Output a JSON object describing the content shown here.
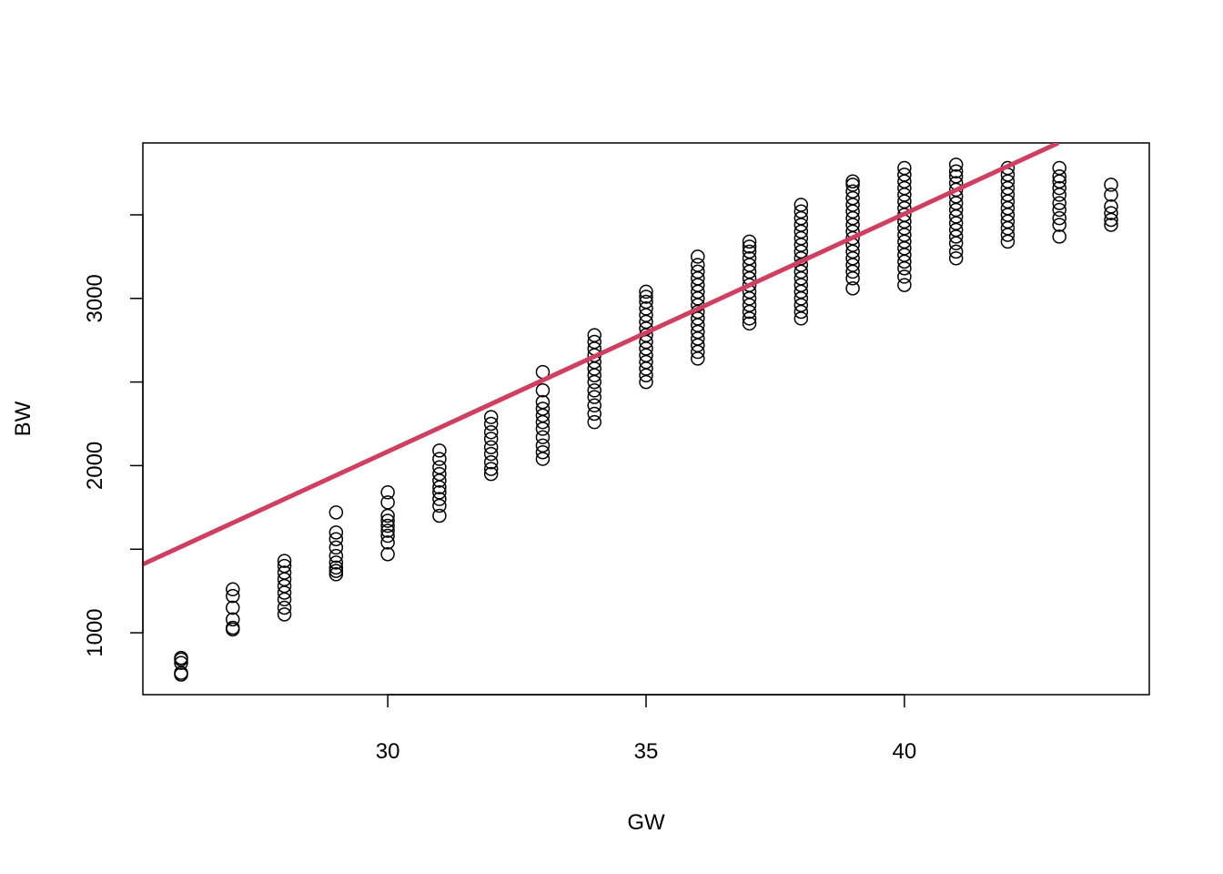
{
  "chart_data": {
    "type": "scatter",
    "title": "",
    "xlabel": "GW",
    "ylabel": "BW",
    "xlim": [
      25.26,
      44.74
    ],
    "ylim": [
      630,
      3930
    ],
    "x_ticks": [
      30,
      35,
      40
    ],
    "y_ticks": [
      1000,
      1500,
      2000,
      2500,
      3000,
      3500
    ],
    "y_tick_labels": [
      "1000",
      "",
      "2000",
      "",
      "3000",
      ""
    ],
    "grid": false,
    "legend": "none",
    "point_color": "#000000",
    "series": [
      {
        "type": "scatter",
        "points": [
          [
            26,
            750
          ],
          [
            26,
            760
          ],
          [
            26,
            820
          ],
          [
            26,
            840
          ],
          [
            26,
            850
          ],
          [
            27,
            1020
          ],
          [
            27,
            1030
          ],
          [
            27,
            1080
          ],
          [
            27,
            1150
          ],
          [
            27,
            1220
          ],
          [
            27,
            1260
          ],
          [
            28,
            1110
          ],
          [
            28,
            1150
          ],
          [
            28,
            1200
          ],
          [
            28,
            1240
          ],
          [
            28,
            1280
          ],
          [
            28,
            1320
          ],
          [
            28,
            1360
          ],
          [
            28,
            1400
          ],
          [
            28,
            1430
          ],
          [
            29,
            1350
          ],
          [
            29,
            1370
          ],
          [
            29,
            1390
          ],
          [
            29,
            1420
          ],
          [
            29,
            1460
          ],
          [
            29,
            1510
          ],
          [
            29,
            1560
          ],
          [
            29,
            1600
          ],
          [
            29,
            1720
          ],
          [
            30,
            1470
          ],
          [
            30,
            1540
          ],
          [
            30,
            1580
          ],
          [
            30,
            1610
          ],
          [
            30,
            1640
          ],
          [
            30,
            1670
          ],
          [
            30,
            1700
          ],
          [
            30,
            1780
          ],
          [
            30,
            1840
          ],
          [
            31,
            1700
          ],
          [
            31,
            1760
          ],
          [
            31,
            1800
          ],
          [
            31,
            1840
          ],
          [
            31,
            1870
          ],
          [
            31,
            1910
          ],
          [
            31,
            1950
          ],
          [
            31,
            1990
          ],
          [
            31,
            2040
          ],
          [
            31,
            2090
          ],
          [
            32,
            1950
          ],
          [
            32,
            1980
          ],
          [
            32,
            2020
          ],
          [
            32,
            2070
          ],
          [
            32,
            2110
          ],
          [
            32,
            2160
          ],
          [
            32,
            2200
          ],
          [
            32,
            2250
          ],
          [
            32,
            2290
          ],
          [
            33,
            2040
          ],
          [
            33,
            2080
          ],
          [
            33,
            2120
          ],
          [
            33,
            2170
          ],
          [
            33,
            2220
          ],
          [
            33,
            2260
          ],
          [
            33,
            2300
          ],
          [
            33,
            2340
          ],
          [
            33,
            2380
          ],
          [
            33,
            2450
          ],
          [
            33,
            2560
          ],
          [
            34,
            2260
          ],
          [
            34,
            2310
          ],
          [
            34,
            2360
          ],
          [
            34,
            2410
          ],
          [
            34,
            2450
          ],
          [
            34,
            2500
          ],
          [
            34,
            2540
          ],
          [
            34,
            2580
          ],
          [
            34,
            2620
          ],
          [
            34,
            2660
          ],
          [
            34,
            2700
          ],
          [
            34,
            2740
          ],
          [
            34,
            2780
          ],
          [
            35,
            2500
          ],
          [
            35,
            2540
          ],
          [
            35,
            2580
          ],
          [
            35,
            2620
          ],
          [
            35,
            2660
          ],
          [
            35,
            2700
          ],
          [
            35,
            2740
          ],
          [
            35,
            2780
          ],
          [
            35,
            2820
          ],
          [
            35,
            2860
          ],
          [
            35,
            2900
          ],
          [
            35,
            2940
          ],
          [
            35,
            2980
          ],
          [
            35,
            3010
          ],
          [
            35,
            3040
          ],
          [
            36,
            2640
          ],
          [
            36,
            2680
          ],
          [
            36,
            2720
          ],
          [
            36,
            2760
          ],
          [
            36,
            2800
          ],
          [
            36,
            2840
          ],
          [
            36,
            2880
          ],
          [
            36,
            2920
          ],
          [
            36,
            2960
          ],
          [
            36,
            3000
          ],
          [
            36,
            3040
          ],
          [
            36,
            3080
          ],
          [
            36,
            3120
          ],
          [
            36,
            3160
          ],
          [
            36,
            3200
          ],
          [
            36,
            3250
          ],
          [
            37,
            2850
          ],
          [
            37,
            2880
          ],
          [
            37,
            2920
          ],
          [
            37,
            2960
          ],
          [
            37,
            3000
          ],
          [
            37,
            3040
          ],
          [
            37,
            3080
          ],
          [
            37,
            3120
          ],
          [
            37,
            3160
          ],
          [
            37,
            3200
          ],
          [
            37,
            3240
          ],
          [
            37,
            3280
          ],
          [
            37,
            3310
          ],
          [
            37,
            3340
          ],
          [
            38,
            2880
          ],
          [
            38,
            2920
          ],
          [
            38,
            2960
          ],
          [
            38,
            3000
          ],
          [
            38,
            3040
          ],
          [
            38,
            3080
          ],
          [
            38,
            3120
          ],
          [
            38,
            3160
          ],
          [
            38,
            3200
          ],
          [
            38,
            3240
          ],
          [
            38,
            3280
          ],
          [
            38,
            3320
          ],
          [
            38,
            3360
          ],
          [
            38,
            3400
          ],
          [
            38,
            3440
          ],
          [
            38,
            3480
          ],
          [
            38,
            3520
          ],
          [
            38,
            3560
          ],
          [
            39,
            3060
          ],
          [
            39,
            3120
          ],
          [
            39,
            3160
          ],
          [
            39,
            3200
          ],
          [
            39,
            3240
          ],
          [
            39,
            3280
          ],
          [
            39,
            3320
          ],
          [
            39,
            3360
          ],
          [
            39,
            3400
          ],
          [
            39,
            3440
          ],
          [
            39,
            3480
          ],
          [
            39,
            3520
          ],
          [
            39,
            3560
          ],
          [
            39,
            3600
          ],
          [
            39,
            3640
          ],
          [
            39,
            3680
          ],
          [
            39,
            3700
          ],
          [
            40,
            3080
          ],
          [
            40,
            3130
          ],
          [
            40,
            3180
          ],
          [
            40,
            3220
          ],
          [
            40,
            3260
          ],
          [
            40,
            3300
          ],
          [
            40,
            3340
          ],
          [
            40,
            3380
          ],
          [
            40,
            3420
          ],
          [
            40,
            3460
          ],
          [
            40,
            3500
          ],
          [
            40,
            3540
          ],
          [
            40,
            3580
          ],
          [
            40,
            3620
          ],
          [
            40,
            3660
          ],
          [
            40,
            3700
          ],
          [
            40,
            3740
          ],
          [
            40,
            3780
          ],
          [
            41,
            3240
          ],
          [
            41,
            3280
          ],
          [
            41,
            3330
          ],
          [
            41,
            3370
          ],
          [
            41,
            3410
          ],
          [
            41,
            3450
          ],
          [
            41,
            3490
          ],
          [
            41,
            3530
          ],
          [
            41,
            3570
          ],
          [
            41,
            3610
          ],
          [
            41,
            3650
          ],
          [
            41,
            3690
          ],
          [
            41,
            3730
          ],
          [
            41,
            3760
          ],
          [
            41,
            3800
          ],
          [
            42,
            3340
          ],
          [
            42,
            3380
          ],
          [
            42,
            3420
          ],
          [
            42,
            3460
          ],
          [
            42,
            3500
          ],
          [
            42,
            3540
          ],
          [
            42,
            3580
          ],
          [
            42,
            3620
          ],
          [
            42,
            3660
          ],
          [
            42,
            3700
          ],
          [
            42,
            3740
          ],
          [
            42,
            3780
          ],
          [
            43,
            3370
          ],
          [
            43,
            3440
          ],
          [
            43,
            3480
          ],
          [
            43,
            3530
          ],
          [
            43,
            3570
          ],
          [
            43,
            3620
          ],
          [
            43,
            3660
          ],
          [
            43,
            3700
          ],
          [
            43,
            3730
          ],
          [
            43,
            3780
          ],
          [
            44,
            3440
          ],
          [
            44,
            3470
          ],
          [
            44,
            3510
          ],
          [
            44,
            3550
          ],
          [
            44,
            3620
          ],
          [
            44,
            3680
          ]
        ]
      },
      {
        "type": "line",
        "color": "#D03F5F",
        "points": [
          [
            25.26,
            1410
          ],
          [
            42.98,
            3930
          ]
        ]
      }
    ]
  }
}
